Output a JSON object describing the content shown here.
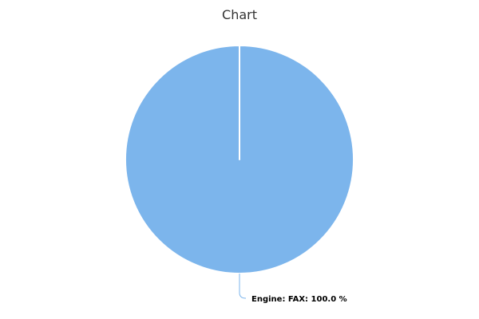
{
  "chart_data": {
    "type": "pie",
    "title": "Chart",
    "slices": [
      {
        "label": "Engine: FAX: 100.0 %",
        "value": 100.0,
        "color": "#7cb5ec"
      }
    ],
    "start_angle_deg": 0,
    "legend": "none"
  }
}
